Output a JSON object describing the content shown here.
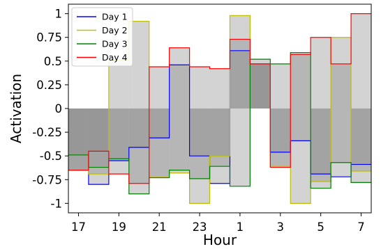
{
  "chart_data": {
    "type": "step",
    "xlabel": "Hour",
    "ylabel": "Activation",
    "x": [
      17,
      18,
      19,
      20,
      21,
      22,
      23,
      0,
      1,
      2,
      3,
      4,
      5,
      6,
      7
    ],
    "xlim": [
      16.5,
      8.5
    ],
    "ylim": [
      -1.1,
      1.1
    ],
    "x_tick_labels": [
      "17",
      "19",
      "21",
      "23",
      "1",
      "3",
      "5",
      "7"
    ],
    "y_ticks": [
      1,
      0.75,
      0.5,
      0.25,
      0,
      -0.25,
      -0.5,
      -0.75,
      -1
    ],
    "y_tick_labels": [
      "1",
      "0.75",
      "0.5",
      "0.25",
      "0",
      "-0.25",
      "-0.5",
      "-0.75",
      "-1"
    ],
    "legend_position": "top-left",
    "grid": false,
    "series": [
      {
        "name": "Day 1",
        "color": "#0000ff",
        "values": [
          -0.65,
          -0.8,
          -0.55,
          -0.41,
          -0.31,
          0.46,
          -0.5,
          -0.79,
          0.61,
          0.47,
          -0.46,
          -0.34,
          -0.69,
          -0.72,
          -0.59
        ]
      },
      {
        "name": "Day 2",
        "color": "#bfbf00",
        "values": [
          -0.65,
          -0.69,
          0.51,
          0.92,
          -0.72,
          -0.68,
          -1.0,
          -0.5,
          0.98,
          0.47,
          -0.61,
          -1.0,
          -0.77,
          0.75,
          -0.66
        ]
      },
      {
        "name": "Day 3",
        "color": "#008000",
        "values": [
          -0.49,
          -0.62,
          -0.53,
          -0.9,
          -0.73,
          -0.65,
          -0.74,
          -0.61,
          -0.82,
          0.52,
          0.47,
          0.59,
          -0.84,
          -0.57,
          -0.78
        ]
      },
      {
        "name": "Day 4",
        "color": "#ff0000",
        "values": [
          -0.65,
          -0.45,
          -0.69,
          -0.79,
          0.44,
          0.64,
          0.44,
          0.42,
          0.73,
          0.47,
          -0.62,
          0.57,
          0.75,
          0.47,
          1.0
        ]
      }
    ]
  }
}
